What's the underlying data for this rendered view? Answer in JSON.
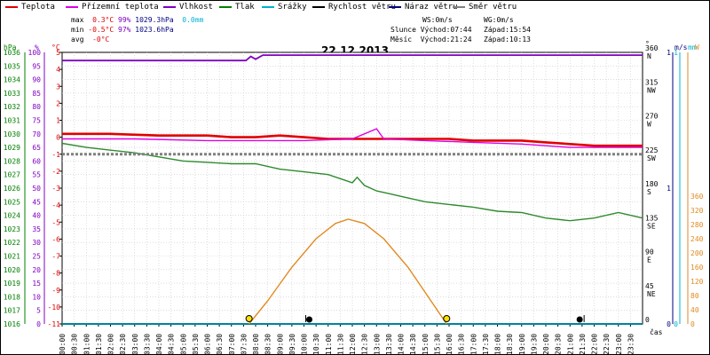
{
  "legend": [
    {
      "label": "Teplota",
      "color": "#e00000"
    },
    {
      "label": "Přízemní teplota",
      "color": "#e000e0"
    },
    {
      "label": "Vlhkost",
      "color": "#8000c0"
    },
    {
      "label": "Tlak",
      "color": "#008000"
    },
    {
      "label": "Srážky",
      "color": "#00b0d0"
    },
    {
      "label": "Rychlost větru",
      "color": "#000000"
    },
    {
      "label": "Náraz větru",
      "color": "#000080"
    },
    {
      "label": "Směr větru",
      "color": "#808080"
    }
  ],
  "stats": {
    "max_label": "max",
    "max_temp": "0.3°C",
    "max_hum": "99%",
    "max_press": "1029.3hPa",
    "max_rain": "0.0mm",
    "min_label": "min",
    "min_temp": "-0.5°C",
    "min_hum": "97%",
    "min_press": "1023.6hPa",
    "avg_label": "avg",
    "avg_temp": "-0°C"
  },
  "info": {
    "ws": "WS:0m/s",
    "wg": "WG:0m/s",
    "sun_rise": "Slunce Východ:07:44",
    "sun_set": "Západ:15:54",
    "moon_rise": "Měsíc  Východ:21:24",
    "moon_set": "Západ:10:13"
  },
  "date": "22.12.2013",
  "axes": {
    "hpa_unit": "hPa",
    "pct_unit": "%",
    "c_unit": "°C",
    "deg_unit": "°",
    "ms_unit": "m/s",
    "mm_unit": "mm",
    "w_unit": "W",
    "time_label": "čas",
    "hpa_ticks": [
      "1036",
      "1035",
      "1034",
      "1033",
      "1032",
      "1031",
      "1030",
      "1029",
      "1028",
      "1027",
      "1026",
      "1025",
      "1024",
      "1023",
      "1022",
      "1021",
      "1020",
      "1019",
      "1018",
      "1017",
      "1016"
    ],
    "pct_ticks": [
      "100",
      "95",
      "90",
      "85",
      "80",
      "75",
      "70",
      "65",
      "60",
      "55",
      "50",
      "45",
      "40",
      "35",
      "30",
      "25",
      "20",
      "15",
      "10",
      "5",
      "0"
    ],
    "c_ticks": [
      "5",
      "4",
      "3",
      "2",
      "1",
      "0",
      "-1",
      "-2",
      "-3",
      "-4",
      "-5",
      "-6",
      "-7",
      "-8",
      "-9",
      "-10",
      "-11"
    ],
    "dir_ticks": [
      {
        "deg": "360",
        "dir": "N"
      },
      {
        "deg": "315",
        "dir": "NW"
      },
      {
        "deg": "270",
        "dir": "W"
      },
      {
        "deg": "225",
        "dir": "SW"
      },
      {
        "deg": "180",
        "dir": "S"
      },
      {
        "deg": "135",
        "dir": "SE"
      },
      {
        "deg": "90",
        "dir": "E"
      },
      {
        "deg": "45",
        "dir": "NE"
      },
      {
        "deg": "0",
        "dir": ""
      }
    ],
    "ms_ticks": [
      {
        "v": "1",
        "frac": 1.0
      },
      {
        "v": "1",
        "frac": 0.5
      },
      {
        "v": "0",
        "frac": 0.0
      }
    ],
    "mm_ticks": [
      {
        "v": "1",
        "frac": 1.0
      },
      {
        "v": "0",
        "frac": 0.0
      }
    ],
    "w_ticks": [
      "360",
      "320",
      "280",
      "240",
      "200",
      "160",
      "120",
      "80",
      "40",
      "0"
    ],
    "time_ticks": [
      "00:00",
      "00:30",
      "01:00",
      "01:30",
      "02:00",
      "02:30",
      "03:00",
      "03:30",
      "04:00",
      "04:30",
      "05:00",
      "05:30",
      "06:00",
      "06:30",
      "07:00",
      "07:30",
      "08:00",
      "08:30",
      "09:00",
      "09:30",
      "10:00",
      "10:30",
      "11:00",
      "11:30",
      "12:00",
      "12:30",
      "13:00",
      "13:30",
      "14:00",
      "14:30",
      "15:00",
      "15:30",
      "16:00",
      "16:30",
      "17:00",
      "17:30",
      "18:00",
      "18:30",
      "19:00",
      "19:30",
      "20:00",
      "20:30",
      "21:00",
      "21:30",
      "22:00",
      "22:30",
      "23:00",
      "23:30"
    ]
  },
  "chart_data": {
    "type": "line",
    "title": "22.12.2013",
    "xlabel": "čas",
    "x_range": [
      "00:00",
      "24:00"
    ],
    "ylim_temp": [
      -11,
      5
    ],
    "ylim_hum": [
      0,
      100
    ],
    "ylim_press": [
      1016,
      1036
    ],
    "ylim_dir": [
      0,
      360
    ],
    "ylim_sun": [
      0,
      360
    ],
    "grid": true,
    "series": [
      {
        "name": "Teplota",
        "axis": "temp",
        "color": "#e00000",
        "points": [
          [
            0,
            0.2
          ],
          [
            2,
            0.2
          ],
          [
            4,
            0.1
          ],
          [
            6,
            0.1
          ],
          [
            7,
            0.0
          ],
          [
            8,
            0.0
          ],
          [
            9,
            0.1
          ],
          [
            10,
            0.0
          ],
          [
            11,
            -0.1
          ],
          [
            12,
            -0.1
          ],
          [
            13,
            -0.1
          ],
          [
            14,
            -0.1
          ],
          [
            15,
            -0.1
          ],
          [
            16,
            -0.1
          ],
          [
            17,
            -0.2
          ],
          [
            18,
            -0.2
          ],
          [
            19,
            -0.2
          ],
          [
            20,
            -0.3
          ],
          [
            21,
            -0.4
          ],
          [
            22,
            -0.5
          ],
          [
            23,
            -0.5
          ],
          [
            24,
            -0.5
          ]
        ]
      },
      {
        "name": "Přízemní teplota",
        "axis": "temp",
        "color": "#e000e0",
        "points": [
          [
            0,
            -0.1
          ],
          [
            3,
            -0.1
          ],
          [
            6,
            -0.2
          ],
          [
            8,
            -0.2
          ],
          [
            10,
            -0.2
          ],
          [
            12,
            -0.1
          ],
          [
            13,
            0.5
          ],
          [
            13.3,
            -0.1
          ],
          [
            15,
            -0.2
          ],
          [
            17,
            -0.3
          ],
          [
            19,
            -0.4
          ],
          [
            20,
            -0.5
          ],
          [
            21,
            -0.6
          ],
          [
            22,
            -0.6
          ],
          [
            23,
            -0.6
          ],
          [
            24,
            -0.6
          ]
        ]
      },
      {
        "name": "Vlhkost",
        "axis": "hum",
        "color": "#8000c0",
        "points": [
          [
            0,
            97
          ],
          [
            7,
            97
          ],
          [
            7.6,
            97
          ],
          [
            7.8,
            98.5
          ],
          [
            8.0,
            97.5
          ],
          [
            8.3,
            99
          ],
          [
            12,
            99
          ],
          [
            16,
            99
          ],
          [
            20,
            99
          ],
          [
            24,
            99
          ]
        ]
      },
      {
        "name": "Tlak",
        "axis": "press",
        "color": "#2e8b2e",
        "points": [
          [
            0,
            1029.3
          ],
          [
            1,
            1029.0
          ],
          [
            2,
            1028.8
          ],
          [
            3,
            1028.6
          ],
          [
            4,
            1028.3
          ],
          [
            5,
            1028.0
          ],
          [
            6,
            1027.9
          ],
          [
            7,
            1027.8
          ],
          [
            8,
            1027.8
          ],
          [
            9,
            1027.4
          ],
          [
            10,
            1027.2
          ],
          [
            11,
            1027.0
          ],
          [
            11.5,
            1026.7
          ],
          [
            12,
            1026.4
          ],
          [
            12.2,
            1026.8
          ],
          [
            12.5,
            1026.2
          ],
          [
            13,
            1025.8
          ],
          [
            13.5,
            1025.6
          ],
          [
            14,
            1025.4
          ],
          [
            15,
            1025.0
          ],
          [
            16,
            1024.8
          ],
          [
            17,
            1024.6
          ],
          [
            18,
            1024.3
          ],
          [
            19,
            1024.2
          ],
          [
            20,
            1023.8
          ],
          [
            21,
            1023.6
          ],
          [
            22,
            1023.8
          ],
          [
            23,
            1024.2
          ],
          [
            23.5,
            1024.0
          ],
          [
            24,
            1023.8
          ]
        ]
      },
      {
        "name": "Směr větru",
        "axis": "dir",
        "color": "#808080",
        "points": [
          [
            0,
            225
          ],
          [
            24,
            225
          ]
        ]
      },
      {
        "name": "Rychlost větru",
        "axis": "ms",
        "color": "#000000",
        "points": [
          [
            0,
            0
          ],
          [
            24,
            0
          ]
        ]
      },
      {
        "name": "Srážky",
        "axis": "mm",
        "color": "#00b0d0",
        "points": [
          [
            0,
            0
          ],
          [
            24,
            0
          ]
        ]
      },
      {
        "name": "sun",
        "axis": "sun",
        "color": "#e08a20",
        "points": [
          [
            7.73,
            0
          ],
          [
            8.5,
            65
          ],
          [
            9.5,
            160
          ],
          [
            10.5,
            240
          ],
          [
            11.3,
            283
          ],
          [
            11.83,
            295
          ],
          [
            12.5,
            283
          ],
          [
            13.3,
            240
          ],
          [
            14.3,
            160
          ],
          [
            15.2,
            70
          ],
          [
            15.9,
            0
          ]
        ]
      }
    ],
    "markers": {
      "sunrise": 7.73,
      "sunset": 15.9,
      "moonset": 10.22,
      "moonrise": 21.4
    }
  }
}
